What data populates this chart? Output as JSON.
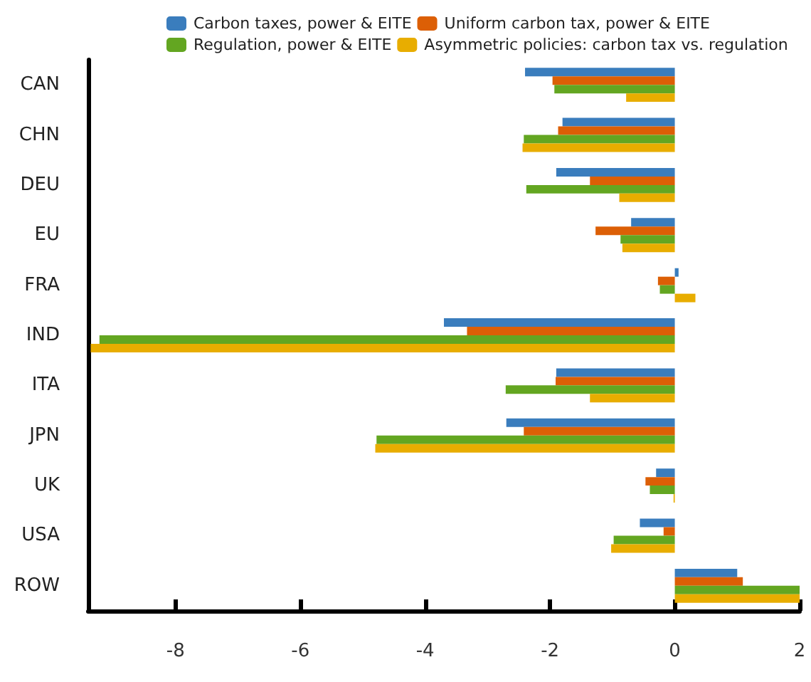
{
  "chart_data": {
    "type": "bar",
    "orientation": "horizontal",
    "categories": [
      "CAN",
      "CHN",
      "DEU",
      "EU",
      "FRA",
      "IND",
      "ITA",
      "JPN",
      "UK",
      "USA",
      "ROW"
    ],
    "series": [
      {
        "name": "Carbon taxes, power & EITE",
        "color": "#3a7dbd",
        "values": [
          -2.4,
          -1.8,
          -1.9,
          -0.7,
          0.06,
          -3.7,
          -1.9,
          -2.7,
          -0.3,
          -0.56,
          1.0
        ]
      },
      {
        "name": "Uniform carbon tax, power & EITE",
        "color": "#dc5f06",
        "values": [
          -1.96,
          -1.87,
          -1.36,
          -1.27,
          -0.27,
          -3.33,
          -1.91,
          -2.42,
          -0.47,
          -0.18,
          1.09
        ]
      },
      {
        "name": "Regulation, power & EITE",
        "color": "#63a621",
        "values": [
          -1.93,
          -2.42,
          -2.38,
          -0.87,
          -0.24,
          -9.22,
          -2.71,
          -4.78,
          -0.4,
          -0.98,
          2.0
        ]
      },
      {
        "name": "Asymmetric policies: carbon tax vs. regulation",
        "color": "#e8ad00",
        "values": [
          -0.78,
          -2.44,
          -0.89,
          -0.84,
          0.33,
          -9.36,
          -1.36,
          -4.8,
          -0.02,
          -1.02,
          2.0
        ]
      }
    ],
    "xlim": [
      -9.4,
      2
    ],
    "xticks": [
      -8,
      -6,
      -4,
      -2,
      0,
      2
    ],
    "grid": false,
    "legend": "top"
  }
}
